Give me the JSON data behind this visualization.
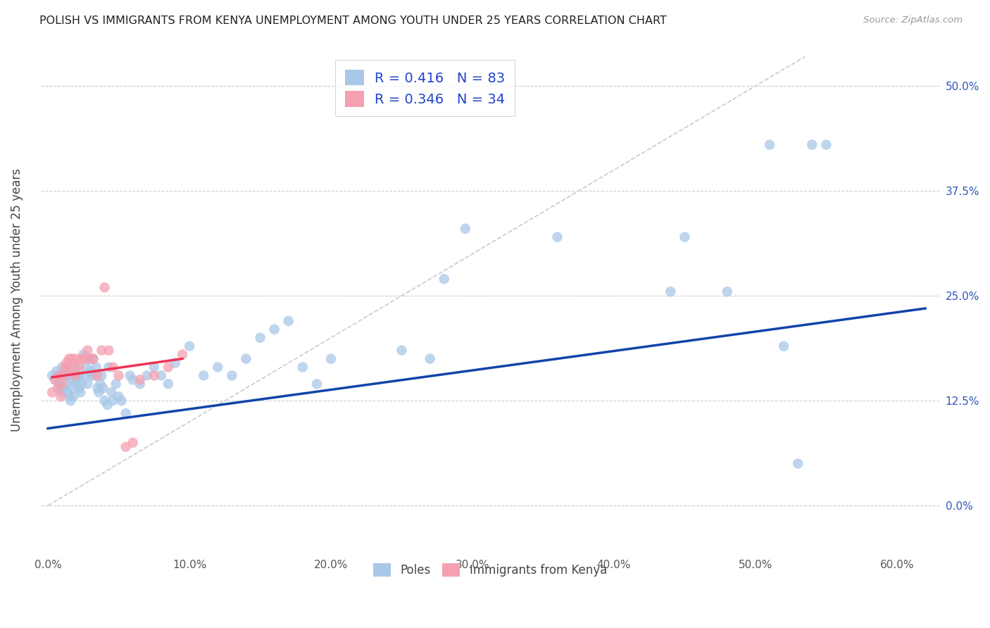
{
  "title": "POLISH VS IMMIGRANTS FROM KENYA UNEMPLOYMENT AMONG YOUTH UNDER 25 YEARS CORRELATION CHART",
  "source": "Source: ZipAtlas.com",
  "ylabel": "Unemployment Among Youth under 25 years",
  "xlim": [
    -0.005,
    0.63
  ],
  "ylim": [
    -0.055,
    0.545
  ],
  "xtick_vals": [
    0.0,
    0.1,
    0.2,
    0.3,
    0.4,
    0.5,
    0.6
  ],
  "ytick_vals": [
    0.0,
    0.125,
    0.25,
    0.375,
    0.5
  ],
  "color_blue": "#A8C8E8",
  "color_pink": "#F4A0B0",
  "color_trend_blue": "#1144AA",
  "color_trend_pink": "#EE3355",
  "color_diag": "#C8C8D8",
  "background": "#FFFFFF",
  "poles_x": [
    0.003,
    0.005,
    0.006,
    0.007,
    0.008,
    0.009,
    0.01,
    0.01,
    0.011,
    0.012,
    0.013,
    0.013,
    0.014,
    0.015,
    0.015,
    0.016,
    0.017,
    0.017,
    0.018,
    0.019,
    0.02,
    0.02,
    0.021,
    0.022,
    0.022,
    0.023,
    0.024,
    0.025,
    0.026,
    0.027,
    0.028,
    0.029,
    0.03,
    0.031,
    0.032,
    0.033,
    0.034,
    0.035,
    0.036,
    0.037,
    0.038,
    0.039,
    0.04,
    0.042,
    0.043,
    0.045,
    0.046,
    0.048,
    0.05,
    0.052,
    0.055,
    0.058,
    0.06,
    0.065,
    0.07,
    0.075,
    0.08,
    0.085,
    0.09,
    0.1,
    0.11,
    0.12,
    0.13,
    0.14,
    0.15,
    0.16,
    0.17,
    0.18,
    0.19,
    0.2,
    0.28,
    0.36,
    0.44,
    0.45,
    0.48,
    0.51,
    0.52,
    0.53,
    0.54,
    0.55,
    0.25,
    0.27,
    0.295
  ],
  "poles_y": [
    0.155,
    0.15,
    0.16,
    0.155,
    0.145,
    0.14,
    0.135,
    0.165,
    0.14,
    0.155,
    0.145,
    0.16,
    0.135,
    0.13,
    0.155,
    0.125,
    0.14,
    0.15,
    0.13,
    0.155,
    0.145,
    0.165,
    0.15,
    0.14,
    0.155,
    0.135,
    0.145,
    0.18,
    0.155,
    0.165,
    0.145,
    0.175,
    0.16,
    0.155,
    0.175,
    0.155,
    0.165,
    0.14,
    0.135,
    0.145,
    0.155,
    0.14,
    0.125,
    0.12,
    0.165,
    0.135,
    0.125,
    0.145,
    0.13,
    0.125,
    0.11,
    0.155,
    0.15,
    0.145,
    0.155,
    0.165,
    0.155,
    0.145,
    0.17,
    0.19,
    0.155,
    0.165,
    0.155,
    0.175,
    0.2,
    0.21,
    0.22,
    0.165,
    0.145,
    0.175,
    0.27,
    0.32,
    0.255,
    0.32,
    0.255,
    0.43,
    0.19,
    0.05,
    0.43,
    0.43,
    0.185,
    0.175,
    0.33
  ],
  "kenya_x": [
    0.003,
    0.005,
    0.007,
    0.008,
    0.009,
    0.01,
    0.011,
    0.012,
    0.013,
    0.014,
    0.015,
    0.016,
    0.017,
    0.018,
    0.019,
    0.02,
    0.022,
    0.024,
    0.026,
    0.028,
    0.03,
    0.032,
    0.035,
    0.038,
    0.04,
    0.043,
    0.046,
    0.05,
    0.055,
    0.06,
    0.065,
    0.075,
    0.085,
    0.095
  ],
  "kenya_y": [
    0.135,
    0.15,
    0.14,
    0.155,
    0.13,
    0.145,
    0.155,
    0.165,
    0.17,
    0.165,
    0.175,
    0.16,
    0.175,
    0.17,
    0.155,
    0.175,
    0.165,
    0.175,
    0.175,
    0.185,
    0.175,
    0.175,
    0.155,
    0.185,
    0.26,
    0.185,
    0.165,
    0.155,
    0.07,
    0.075,
    0.15,
    0.155,
    0.165,
    0.18
  ],
  "blue_trend_x": [
    0.0,
    0.62
  ],
  "blue_trend_y": [
    0.092,
    0.235
  ],
  "pink_trend_x": [
    0.003,
    0.095
  ],
  "pink_trend_y": [
    0.153,
    0.175
  ]
}
